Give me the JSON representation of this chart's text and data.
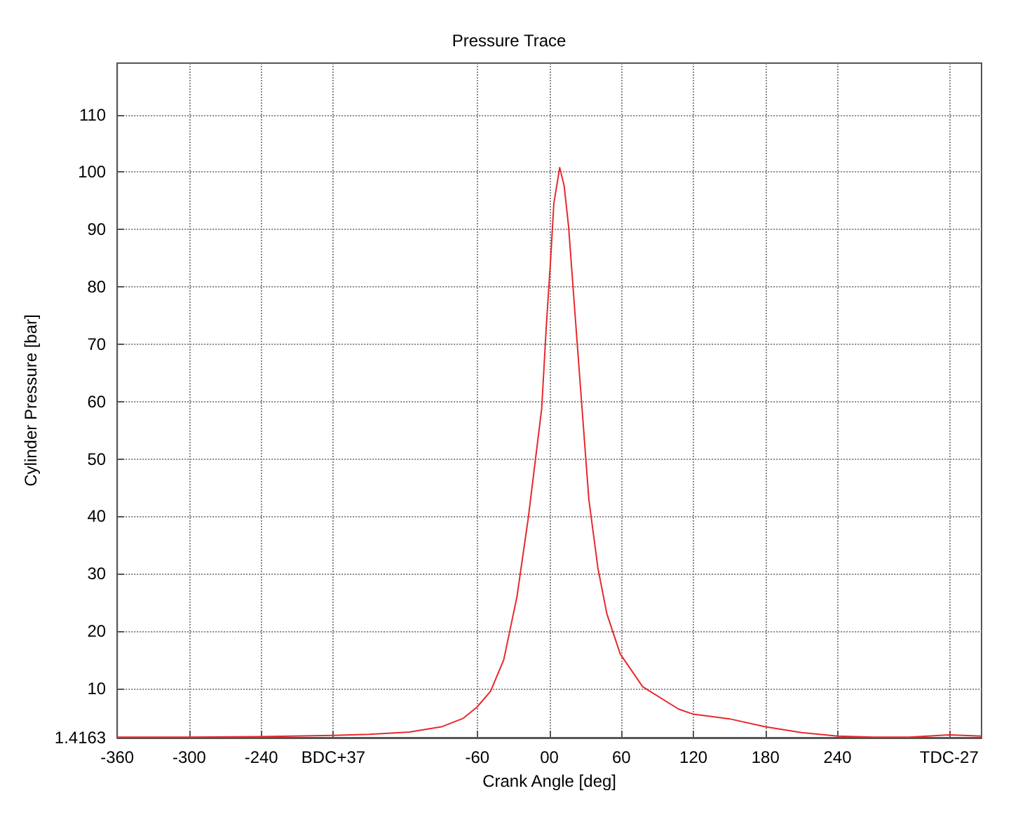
{
  "chart_data": {
    "type": "line",
    "title": "Pressure Trace",
    "xlabel": "Crank Angle [deg]",
    "ylabel": "Cylinder Pressure [bar]",
    "x": [
      -360,
      -300,
      -240,
      -180,
      -150,
      -116.6,
      -90,
      -71.7,
      -60.5,
      -49,
      -38,
      -27,
      -17.6,
      -6.4,
      -2.6,
      1.1,
      3.7,
      8.6,
      12.3,
      16,
      21.6,
      27.2,
      32.9,
      40.4,
      47.9,
      59,
      77.7,
      107.6,
      120,
      150,
      180,
      210,
      240,
      270,
      300,
      333,
      360
    ],
    "series": [
      {
        "color": "#e8282c",
        "values": [
          1.5,
          1.5,
          1.6,
          1.8,
          2.0,
          2.4,
          3.3,
          4.8,
          6.7,
          9.5,
          15,
          26,
          39.7,
          58.8,
          73,
          85,
          94.5,
          100.8,
          97.6,
          90.5,
          74.6,
          58.8,
          42.9,
          31,
          23,
          16,
          10.3,
          6.4,
          5.5,
          4.7,
          3.3,
          2.3,
          1.7,
          1.5,
          1.5,
          1.9,
          1.7
        ]
      }
    ],
    "xlim": [
      -360,
      360
    ],
    "xticks": [
      -360,
      -300,
      -240,
      {
        "value": -180,
        "label": "BDC+37"
      },
      -60,
      {
        "value": 0,
        "label": "00"
      },
      60,
      120,
      180,
      240,
      {
        "value": 333,
        "label": "TDC-27"
      }
    ],
    "ylim": [
      1.4163,
      119
    ],
    "yticks": [
      1.4163,
      10,
      20,
      30,
      40,
      50,
      60,
      70,
      80,
      90,
      100,
      110
    ],
    "grid": true,
    "marker": "none",
    "line_style": "solid"
  }
}
